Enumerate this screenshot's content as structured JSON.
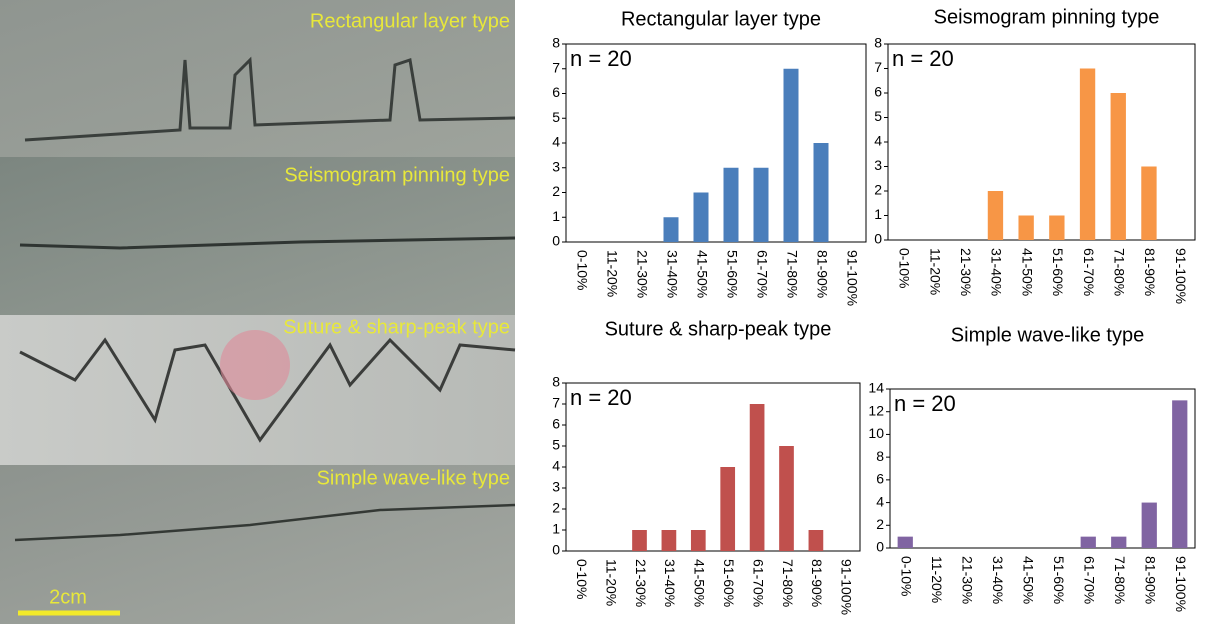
{
  "photo": {
    "labels": [
      "Rectangular layer type",
      "Seismogram pinning type",
      "Suture & sharp-peak type",
      "Simple wave-like type"
    ],
    "scale_bar": "2cm"
  },
  "chart_data": [
    {
      "type": "bar",
      "title": "Rectangular layer type",
      "annotation": "n = 20",
      "color": "#4a7ebb",
      "categories": [
        "0-10%",
        "11-20%",
        "21-30%",
        "31-40%",
        "41-50%",
        "51-60%",
        "61-70%",
        "71-80%",
        "81-90%",
        "91-100%"
      ],
      "values": [
        0,
        0,
        0,
        1,
        2,
        3,
        3,
        7,
        4,
        0
      ],
      "ylim": [
        0,
        8
      ],
      "yticks": [
        0,
        1,
        2,
        3,
        4,
        5,
        6,
        7,
        8
      ],
      "grid": false
    },
    {
      "type": "bar",
      "title": "Seismogram pinning type",
      "annotation": "n = 20",
      "color": "#f79646",
      "categories": [
        "0-10%",
        "11-20%",
        "21-30%",
        "31-40%",
        "41-50%",
        "51-60%",
        "61-70%",
        "71-80%",
        "81-90%",
        "91-100%"
      ],
      "values": [
        0,
        0,
        0,
        2,
        1,
        1,
        7,
        6,
        3,
        0
      ],
      "ylim": [
        0,
        8
      ],
      "yticks": [
        0,
        1,
        2,
        3,
        4,
        5,
        6,
        7,
        8
      ],
      "grid": false
    },
    {
      "type": "bar",
      "title": "Suture & sharp-peak type",
      "annotation": "n = 20",
      "color": "#c0504d",
      "categories": [
        "0-10%",
        "11-20%",
        "21-30%",
        "31-40%",
        "41-50%",
        "51-60%",
        "61-70%",
        "71-80%",
        "81-90%",
        "91-100%"
      ],
      "values": [
        0,
        0,
        1,
        1,
        1,
        4,
        7,
        5,
        1,
        0
      ],
      "ylim": [
        0,
        8
      ],
      "yticks": [
        0,
        1,
        2,
        3,
        4,
        5,
        6,
        7,
        8
      ],
      "grid": false
    },
    {
      "type": "bar",
      "title": "Simple wave-like type",
      "annotation": "n = 20",
      "color": "#8064a2",
      "categories": [
        "0-10%",
        "11-20%",
        "21-30%",
        "31-40%",
        "41-50%",
        "51-60%",
        "61-70%",
        "71-80%",
        "81-90%",
        "91-100%"
      ],
      "values": [
        1,
        0,
        0,
        0,
        0,
        0,
        1,
        1,
        4,
        13
      ],
      "ylim": [
        0,
        14
      ],
      "yticks": [
        0,
        2,
        4,
        6,
        8,
        10,
        12,
        14
      ],
      "grid": false
    }
  ]
}
